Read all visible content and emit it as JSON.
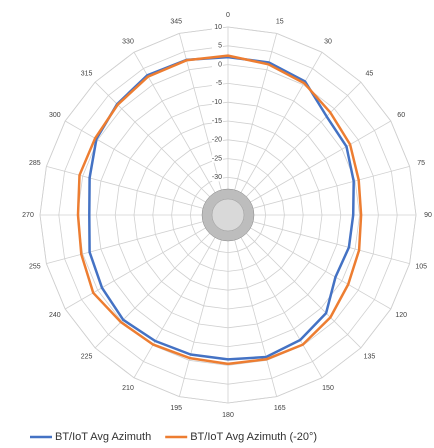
{
  "chart_data": {
    "type": "radar",
    "categories": [
      "0",
      "15",
      "30",
      "45",
      "60",
      "75",
      "90",
      "105",
      "120",
      "135",
      "150",
      "165",
      "180",
      "195",
      "210",
      "225",
      "240",
      "255",
      "270",
      "285",
      "300",
      "315",
      "330",
      "345"
    ],
    "series": [
      {
        "name": "BT/IoT Avg Azimuth",
        "color": "#4472c4",
        "values": [
          2,
          2,
          1,
          -2.9,
          -3.6,
          -5.4,
          -6.7,
          -6.7,
          -7,
          -3.1,
          -1.6,
          -0.9,
          -1.6,
          -1.6,
          -1.3,
          -0.6,
          -1.3,
          -1.9,
          -3.1,
          -1.9,
          0.4,
          1.7,
          2.9,
          2.7
        ]
      },
      {
        "name": "BT/IoT Avg Azimuth (-20°)",
        "color": "#ed7d31",
        "values": [
          2.4,
          1.5,
          0.5,
          -1.5,
          -2.5,
          -4,
          -4.6,
          -3.9,
          -3.1,
          -1.5,
          -0.2,
          -0.3,
          -0.4,
          -0.6,
          -0.2,
          0.3,
          1.4,
          0.4,
          -0.1,
          0.9,
          0.8,
          1.5,
          2.5,
          2.6
        ]
      }
    ],
    "ylim": [
      -40,
      10
    ],
    "yticks": [
      -30,
      -25,
      -20,
      -15,
      -10,
      -5,
      0,
      5,
      10
    ],
    "grid": true
  }
}
